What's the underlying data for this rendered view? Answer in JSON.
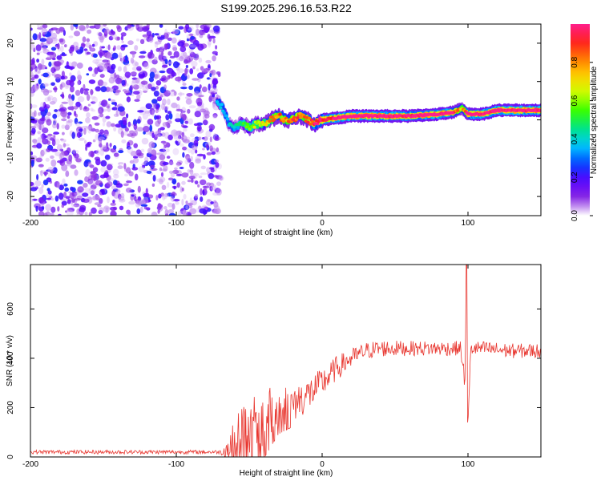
{
  "title": "S199.2025.296.16.53.R22",
  "chart_data": [
    {
      "type": "heatmap",
      "name": "spectrogram",
      "xlabel": "Height of straight line (km)",
      "ylabel": "Frequency (Hz)",
      "xlim": [
        -200,
        150
      ],
      "ylim": [
        -25,
        25
      ],
      "xticks": [
        -200,
        -100,
        0,
        100
      ],
      "xtick_labels": [
        "-200",
        "-100",
        "0",
        "100"
      ],
      "yticks": [
        -20,
        -10,
        0,
        10,
        20
      ],
      "ytick_labels": [
        "-20",
        "-10",
        "0",
        "10",
        "20"
      ],
      "noise_region_x": [
        -200,
        -70
      ],
      "signal_ridge": {
        "x": [
          -72,
          -68,
          -64,
          -60,
          -55,
          -50,
          -45,
          -40,
          -35,
          -30,
          -25,
          -20,
          -15,
          -10,
          -5,
          0,
          10,
          20,
          40,
          60,
          80,
          90,
          96,
          100,
          110,
          120,
          130,
          150
        ],
        "freq_hz": [
          5,
          3,
          -1,
          -2,
          -1,
          -2,
          -1,
          -1,
          0,
          1,
          0,
          0,
          1,
          0,
          -1,
          0,
          0.5,
          1,
          1,
          1,
          1.5,
          2,
          3,
          1.5,
          1.5,
          2.5,
          2.5,
          2.5
        ],
        "amplitude": [
          0.3,
          0.25,
          0.3,
          0.35,
          0.4,
          0.5,
          0.55,
          0.6,
          0.7,
          0.75,
          0.7,
          0.8,
          0.75,
          0.8,
          0.85,
          0.9,
          0.95,
          1.0,
          1.0,
          0.95,
          1.0,
          0.9,
          0.6,
          0.95,
          1.0,
          1.0,
          1.0,
          1.0
        ]
      }
    },
    {
      "type": "line",
      "name": "snr",
      "xlabel": "Height of straight line (km)",
      "ylabel": "SNR (10 * v/v)",
      "xlim": [
        -200,
        150
      ],
      "ylim": [
        0,
        780
      ],
      "xticks": [
        -200,
        -100,
        0,
        100
      ],
      "xtick_labels": [
        "-200",
        "-100",
        "0",
        "100"
      ],
      "yticks": [
        0,
        200,
        400,
        600
      ],
      "ytick_labels": [
        "0",
        "200",
        "400",
        "600"
      ],
      "color": "#e8362f",
      "series": [
        {
          "name": "SNR",
          "x": [
            -200,
            -150,
            -100,
            -70,
            -62,
            -55,
            -50,
            -45,
            -40,
            -30,
            -20,
            -10,
            0,
            10,
            20,
            30,
            40,
            60,
            80,
            95,
            98,
            99,
            100,
            102,
            110,
            130,
            150
          ],
          "values": [
            20,
            20,
            20,
            20,
            40,
            120,
            100,
            140,
            150,
            200,
            220,
            250,
            300,
            360,
            400,
            430,
            440,
            440,
            440,
            440,
            300,
            780,
            140,
            440,
            440,
            430,
            430
          ],
          "noise_amplitude": [
            8,
            8,
            8,
            8,
            80,
            120,
            110,
            120,
            130,
            90,
            80,
            70,
            60,
            50,
            40,
            35,
            35,
            30,
            30,
            30,
            40,
            0,
            0,
            30,
            30,
            30,
            30
          ]
        }
      ]
    }
  ],
  "colorbar": {
    "label": "Normalized spectral amplitude",
    "range": [
      0,
      1
    ],
    "ticks": [
      0.0,
      0.2,
      0.4,
      0.6,
      0.8
    ],
    "tick_labels": [
      "0.0",
      "0.2",
      "0.4",
      "0.6",
      "0.8"
    ],
    "colors": [
      "#ffffff",
      "#8a2be2",
      "#5a00ff",
      "#0044ff",
      "#00c8ff",
      "#00e38a",
      "#33ff00",
      "#c8ff00",
      "#ffd400",
      "#ff7a00",
      "#ff1f1f",
      "#ff1f8c"
    ]
  }
}
